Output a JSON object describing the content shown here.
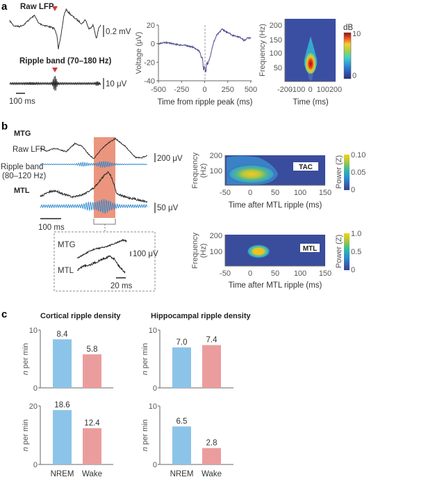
{
  "panels": {
    "a": "a",
    "b": "b",
    "c": "c"
  },
  "panel_a": {
    "raw_title": "Raw LFP",
    "ripple_title": "Ripple band (70–180 Hz)",
    "raw_scale": "0.2 mV",
    "ripple_scale": "10 μV",
    "time_scale": "100 ms",
    "marker_color": "#d33a3a"
  },
  "panel_b": {
    "mtg_title": "MTG",
    "mtl_title": "MTL",
    "raw_label": "Raw LFP",
    "ripple_label_1": "Ripple band",
    "ripple_label_2": "(80–120 Hz)",
    "scale_top": "200 μV",
    "scale_bottom": "50 μV",
    "time_scale": "100 ms",
    "inset": {
      "mtg": "MTG",
      "mtl": "MTL",
      "amp_scale": "100 μV",
      "time_scale": "20 ms"
    },
    "highlight_color": "#ea8a70",
    "trace_color": "#2b2b2b",
    "ripple_color": "#2a86cf"
  },
  "chart_data": [
    {
      "id": "avg_lfp",
      "type": "line",
      "xlabel": "Time from ripple peak (ms)",
      "ylabel": "Voltage (μV)",
      "xlim": [
        -500,
        500
      ],
      "ylim": [
        -40,
        20
      ],
      "xticks": [
        "-500",
        "-250",
        "0",
        "250",
        "500"
      ],
      "yticks": [
        "20",
        "0",
        "-20",
        "-40"
      ],
      "vline_at": 0,
      "color": "#4b4a8c",
      "series": [
        {
          "x": [
            -500,
            -450,
            -400,
            -300,
            -200,
            -120,
            -60,
            -30,
            -15,
            0,
            15,
            30,
            50,
            80,
            100,
            130,
            160,
            190,
            220,
            260,
            300,
            350,
            400,
            430,
            460,
            500
          ],
          "y": [
            0,
            1,
            1,
            -1,
            -2,
            -4,
            -8,
            -15,
            -22,
            -30,
            -25,
            -22,
            -18,
            -5,
            2,
            9,
            12,
            16,
            13,
            12,
            9,
            8,
            6,
            3,
            6,
            6
          ]
        }
      ]
    },
    {
      "id": "spectrogram_a",
      "type": "heatmap",
      "xlabel": "Time (ms)",
      "ylabel": "Frequency (Hz)",
      "xlim": [
        -200,
        200
      ],
      "ylim": [
        0,
        220
      ],
      "xticks": [
        "-200",
        "-100",
        "0",
        "100",
        "200"
      ],
      "yticks": [
        "200",
        "150",
        "100",
        "50"
      ],
      "colorbar": {
        "label": "dB",
        "range": [
          0,
          10
        ],
        "ticks": [
          "10",
          "0"
        ]
      },
      "peak": {
        "time_ms": 0,
        "freq_hz": 90
      }
    },
    {
      "id": "spectrogram_tac",
      "type": "heatmap",
      "tag": "TAC",
      "xlabel": "Time after MTL ripple (ms)",
      "ylabel_1": "Frequency",
      "ylabel_2": "(Hz)",
      "xlim": [
        -50,
        150
      ],
      "ylim": [
        0,
        200
      ],
      "xticks": [
        "-50",
        "0",
        "50",
        "100",
        "150"
      ],
      "yticks": [
        "200",
        "100"
      ],
      "colorbar": {
        "label": "Power (Z)",
        "range": [
          0,
          0.1
        ],
        "ticks": [
          "0.10",
          "0.05",
          "0"
        ]
      },
      "peak": {
        "time_ms": 15,
        "freq_hz": 90
      }
    },
    {
      "id": "spectrogram_mtl",
      "type": "heatmap",
      "tag": "MTL",
      "xlabel": "Time after MTL ripple (ms)",
      "ylabel_1": "Frequency",
      "ylabel_2": "(Hz)",
      "xlim": [
        -50,
        150
      ],
      "ylim": [
        0,
        200
      ],
      "xticks": [
        "-50",
        "0",
        "50",
        "100",
        "150"
      ],
      "yticks": [
        "200",
        "100"
      ],
      "colorbar": {
        "label": "Power (Z)",
        "range": [
          0,
          1.0
        ],
        "ticks": [
          "1.0",
          "0.5",
          "0"
        ]
      },
      "peak": {
        "time_ms": 15,
        "freq_hz": 100
      }
    },
    {
      "id": "cortical_top",
      "type": "bar",
      "title": "Cortical ripple density",
      "categories": [
        "NREM",
        "Wake"
      ],
      "values": [
        8.4,
        5.8
      ],
      "labels": [
        "8.4",
        "5.8"
      ],
      "ylabel": "n per min",
      "ylim": [
        0,
        10
      ],
      "yticks": [
        "10",
        "0"
      ],
      "colors": [
        "#8cc4e9",
        "#eb9d9d"
      ]
    },
    {
      "id": "hippocampal_top",
      "type": "bar",
      "title": "Hippocampal ripple density",
      "categories": [
        "NREM",
        "Wake"
      ],
      "values": [
        7.0,
        7.4
      ],
      "labels": [
        "7.0",
        "7.4"
      ],
      "ylabel": "n per min",
      "ylim": [
        0,
        10
      ],
      "yticks": [
        "10",
        "0"
      ],
      "colors": [
        "#8cc4e9",
        "#eb9d9d"
      ]
    },
    {
      "id": "cortical_bottom",
      "type": "bar",
      "categories": [
        "NREM",
        "Wake"
      ],
      "values": [
        18.6,
        12.4
      ],
      "labels": [
        "18.6",
        "12.4"
      ],
      "ylabel": "n per min",
      "ylim": [
        0,
        20
      ],
      "yticks": [
        "20",
        "0"
      ],
      "colors": [
        "#8cc4e9",
        "#eb9d9d"
      ]
    },
    {
      "id": "hippocampal_bottom",
      "type": "bar",
      "categories": [
        "NREM",
        "Wake"
      ],
      "values": [
        6.5,
        2.8
      ],
      "labels": [
        "6.5",
        "2.8"
      ],
      "ylabel": "n per min",
      "ylim": [
        0,
        10
      ],
      "yticks": [
        "10",
        "0"
      ],
      "colors": [
        "#8cc4e9",
        "#eb9d9d"
      ]
    }
  ]
}
